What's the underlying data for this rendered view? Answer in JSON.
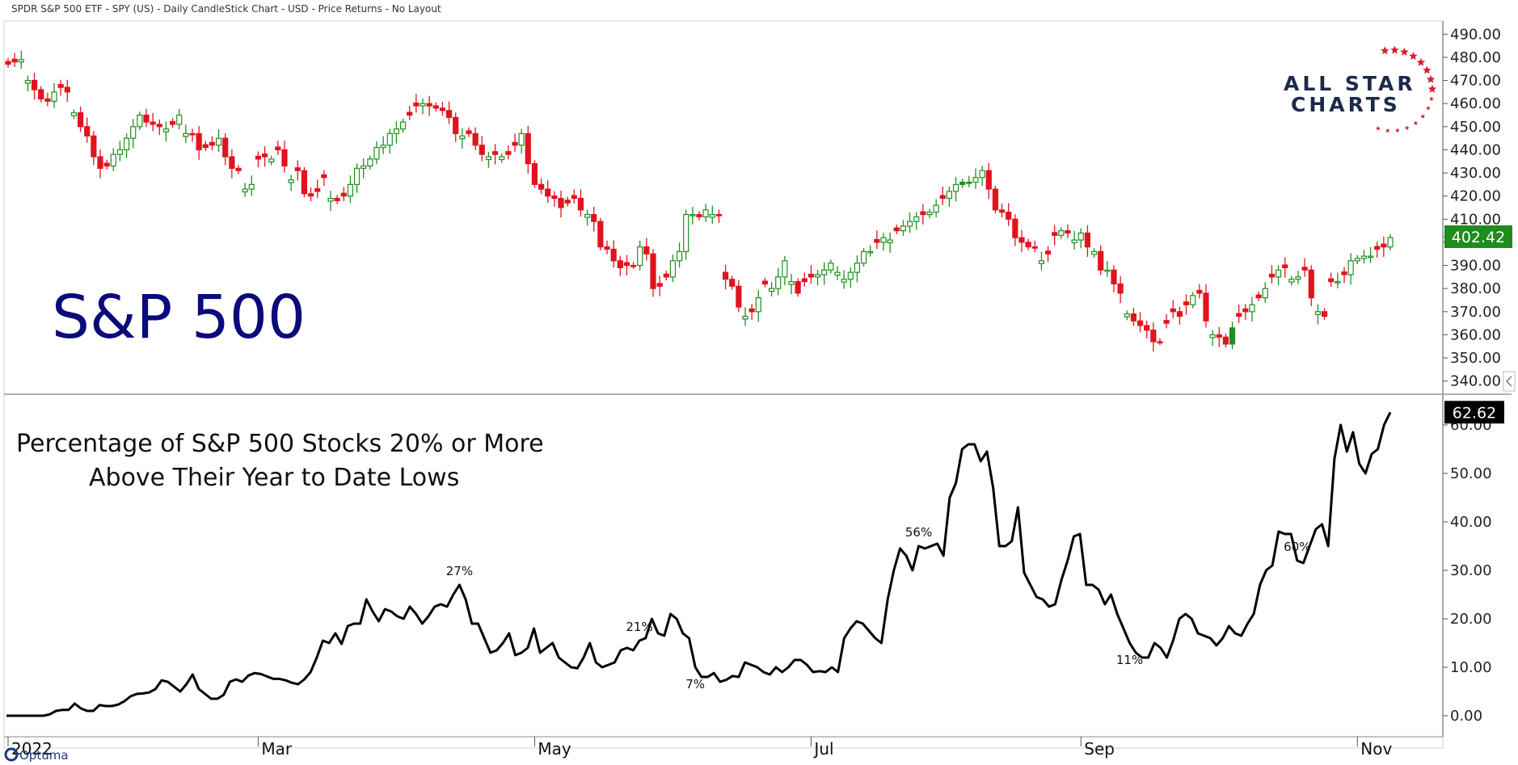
{
  "header": {
    "title": "SPDR S&P 500 ETF - SPY (US) - Daily CandleStick Chart - USD - Price Returns - No Layout"
  },
  "logo": {
    "line1": "ALL STAR",
    "line2": "CHARTS",
    "color": "#1b2a4a",
    "accent": "#d71f34"
  },
  "branding": {
    "optuma": "Optuma"
  },
  "colors": {
    "up": "#1f8f1f",
    "down": "#e0141e",
    "line": "#000000",
    "title": "#0a0a7a",
    "tag_top": "#1e8c1e",
    "tag_bottom": "#000000"
  },
  "chart_data": [
    {
      "type": "candlestick",
      "title": "S&P 500",
      "ylim": [
        335,
        495
      ],
      "yticks": [
        "340.00",
        "350.00",
        "360.00",
        "370.00",
        "380.00",
        "390.00",
        "400.00",
        "410.00",
        "420.00",
        "430.00",
        "440.00",
        "450.00",
        "460.00",
        "470.00",
        "480.00",
        "490.00"
      ],
      "last_value": "402.42",
      "x_labels": [
        "2022",
        "Mar",
        "May",
        "Jul",
        "Sep",
        "Nov"
      ],
      "close": [
        477,
        478,
        479,
        470,
        466,
        462,
        461,
        465,
        467,
        465,
        456,
        450,
        446,
        437,
        432,
        433,
        438,
        440,
        445,
        450,
        455,
        452,
        451,
        450,
        449,
        451,
        455,
        447,
        447,
        440,
        441,
        442,
        445,
        437,
        432,
        431,
        423,
        425,
        436,
        437,
        436,
        440,
        433,
        427,
        431,
        421,
        420,
        422,
        428,
        419,
        418,
        420,
        425,
        432,
        433,
        436,
        441,
        442,
        447,
        449,
        452,
        455,
        459,
        460,
        459,
        458,
        457,
        454,
        447,
        446,
        447,
        442,
        438,
        437,
        438,
        437,
        438,
        442,
        447,
        434,
        425,
        423,
        420,
        419,
        415,
        417,
        419,
        414,
        412,
        409,
        398,
        397,
        392,
        389,
        390,
        390,
        398,
        395,
        380,
        381,
        385,
        392,
        396,
        412,
        412,
        411,
        414,
        412,
        412,
        384,
        381,
        372,
        368,
        370,
        376,
        382,
        380,
        385,
        392,
        383,
        378,
        383,
        385,
        386,
        388,
        391,
        387,
        384,
        387,
        391,
        396,
        396,
        400,
        402,
        401,
        405,
        407,
        409,
        411,
        412,
        413,
        416,
        419,
        422,
        425,
        426,
        426,
        428,
        431,
        423,
        414,
        413,
        410,
        402,
        400,
        398,
        398,
        392,
        395,
        403,
        405,
        404,
        401,
        404,
        398,
        396,
        388,
        388,
        382,
        378,
        369,
        366,
        364,
        362,
        357,
        357,
        365,
        370,
        368,
        373,
        377,
        378,
        366,
        360,
        359,
        356,
        363,
        368,
        370,
        373,
        376,
        380,
        385,
        388,
        389,
        384,
        385,
        388,
        376,
        370,
        368,
        383,
        383,
        386,
        392,
        393,
        394,
        394,
        397,
        398,
        402
      ],
      "up": [
        2,
        3,
        7,
        10,
        16,
        17,
        18,
        19,
        20,
        24,
        26,
        27,
        32,
        36,
        37,
        40,
        43,
        49,
        52,
        53,
        54,
        55,
        56,
        57,
        58,
        59,
        60,
        63,
        69,
        73,
        75,
        78,
        88,
        96,
        101,
        102,
        103,
        104,
        106,
        107,
        112,
        114,
        116,
        117,
        118,
        119,
        123,
        124,
        125,
        126,
        127,
        128,
        129,
        130,
        131,
        133,
        134,
        136,
        137,
        138,
        140,
        141,
        143,
        144,
        145,
        146,
        147,
        148,
        157,
        160,
        162,
        163,
        165,
        167,
        170,
        180,
        183,
        186,
        189,
        191,
        193,
        195,
        196,
        199,
        202,
        204,
        205,
        206,
        207,
        210,
        211,
        214,
        215
      ],
      "green_body": [
        145,
        146,
        186,
        187
      ],
      "gap_after": 108
    },
    {
      "type": "line",
      "title": "Percentage of S&P 500 Stocks 20% or More Above Their Year to Date Lows",
      "ylim": [
        -4,
        66
      ],
      "yticks": [
        "0.00",
        "10.00",
        "20.00",
        "30.00",
        "40.00",
        "50.00",
        "60.00"
      ],
      "last_value": "62.62",
      "values": [
        0,
        0,
        0,
        0,
        0,
        0,
        0,
        0.3,
        1,
        1.2,
        1.2,
        2.5,
        1.5,
        1,
        1,
        2.2,
        2,
        2,
        2.3,
        3,
        4,
        4.5,
        4.6,
        4.8,
        5.5,
        7.3,
        7,
        6,
        5,
        6.5,
        8.5,
        5.5,
        4.5,
        3.5,
        3.5,
        4.3,
        7,
        7.5,
        7,
        8.3,
        8.8,
        8.6,
        8.1,
        7.6,
        7.6,
        7.3,
        6.8,
        6.5,
        7.5,
        9,
        12,
        15.5,
        15,
        17,
        14.8,
        18.5,
        19,
        19,
        24,
        21.5,
        19.5,
        22,
        21.5,
        20.5,
        20,
        22.5,
        21,
        19,
        20.5,
        22.5,
        23,
        22.5,
        25,
        27,
        24,
        19,
        19,
        16,
        13,
        13.5,
        15,
        17,
        12.5,
        13,
        14,
        18,
        13,
        14,
        15,
        12,
        11,
        10,
        9.8,
        12,
        15,
        11,
        10,
        10.5,
        11,
        13.5,
        14,
        13.5,
        15.5,
        16,
        20,
        17,
        16.5,
        21,
        20,
        17,
        16,
        10,
        8,
        8,
        8.8,
        7,
        7.4,
        8.2,
        8,
        11,
        10.5,
        10,
        9,
        8.5,
        10,
        9,
        10,
        11.5,
        11.5,
        10.5,
        9,
        9.2,
        9,
        10,
        9,
        16,
        18,
        19.5,
        19,
        17.5,
        16,
        15,
        24,
        30,
        34.5,
        33,
        30,
        35,
        34.5,
        35,
        35.5,
        33,
        45,
        48,
        55,
        56,
        56,
        52.5,
        54.5,
        47,
        35,
        35,
        36,
        43,
        29.5,
        27,
        24.5,
        24,
        22.5,
        23,
        28,
        32,
        37,
        37.5,
        27,
        27,
        26,
        23,
        25,
        21,
        18,
        15,
        13,
        12,
        12,
        15,
        14,
        12,
        15.5,
        20,
        21,
        20,
        17,
        16.5,
        16,
        14.5,
        16,
        18.5,
        17,
        16.5,
        19,
        21,
        27,
        30,
        31,
        38,
        37.5,
        37.5,
        32,
        31.5,
        35,
        38.5,
        39.5,
        35,
        53,
        60,
        54.5,
        58.5,
        52,
        50,
        54,
        55,
        60,
        62.6
      ],
      "annotations": [
        {
          "index": 73,
          "text": "27%",
          "pos": "above"
        },
        {
          "index": 102,
          "text": "21%",
          "pos": "above"
        },
        {
          "index": 111,
          "text": "7%",
          "pos": "below"
        },
        {
          "index": 147,
          "text": "56%",
          "pos": "above"
        },
        {
          "index": 181,
          "text": "11%",
          "pos": "below"
        },
        {
          "index": 208,
          "text": "60%",
          "pos": "above"
        }
      ]
    }
  ]
}
